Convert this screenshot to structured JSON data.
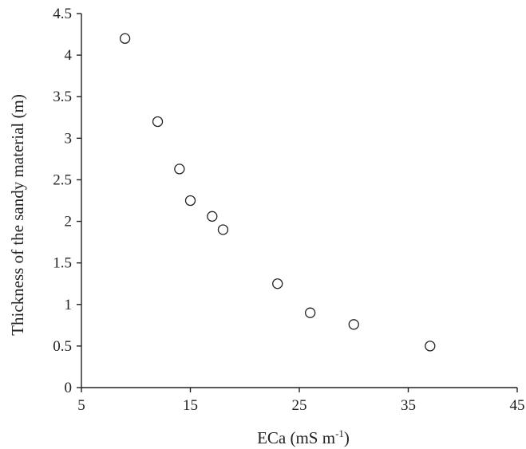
{
  "chart_data": {
    "type": "scatter",
    "title": "",
    "xlabel": "ECa (mS m",
    "xlabel_superscript": "-1",
    "xlabel_suffix": ")",
    "ylabel": "Thickness of the sandy material (m)",
    "xlim": [
      5,
      45
    ],
    "ylim": [
      0,
      4.5
    ],
    "x_ticks": [
      5,
      15,
      25,
      35,
      45
    ],
    "x_tick_labels": [
      "5",
      "15",
      "25",
      "35",
      "45"
    ],
    "y_ticks": [
      0,
      0.5,
      1,
      1.5,
      2,
      2.5,
      3,
      3.5,
      4,
      4.5
    ],
    "y_tick_labels": [
      "0",
      "0.5",
      "1",
      "1.5",
      "2",
      "2.5",
      "3",
      "3.5",
      "4",
      "4.5"
    ],
    "grid": false,
    "marker": "open-circle",
    "points": [
      {
        "x": 9,
        "y": 4.2
      },
      {
        "x": 12,
        "y": 3.2
      },
      {
        "x": 14,
        "y": 2.63
      },
      {
        "x": 15,
        "y": 2.25
      },
      {
        "x": 17,
        "y": 2.06
      },
      {
        "x": 18,
        "y": 1.9
      },
      {
        "x": 23,
        "y": 1.25
      },
      {
        "x": 26,
        "y": 0.9
      },
      {
        "x": 30,
        "y": 0.76
      },
      {
        "x": 37,
        "y": 0.5
      }
    ]
  }
}
